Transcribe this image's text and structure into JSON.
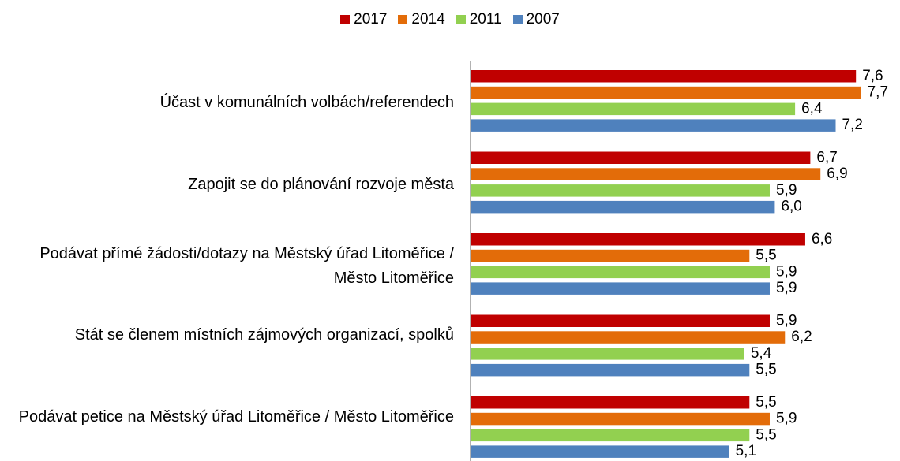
{
  "chart_data": {
    "type": "bar",
    "orientation": "horizontal",
    "categories": [
      "Účast v komunálních volbách/referendech",
      "Zapojit se do plánování rozvoje města",
      "Podávat přímé žádosti/dotazy na Městský úřad Litoměřice / Město Litoměřice",
      "Stát se členem místních zájmových organizací, spolků",
      "Podávat petice na Městský úřad Litoměřice / Město Litoměřice"
    ],
    "series": [
      {
        "name": "2017",
        "color": "#c00000",
        "values": [
          7.6,
          6.7,
          6.6,
          5.9,
          5.5
        ],
        "value_labels": [
          "7,6",
          "6,7",
          "6,6",
          "5,9",
          "5,5"
        ]
      },
      {
        "name": "2014",
        "color": "#e36c09",
        "values": [
          7.7,
          6.9,
          5.5,
          6.2,
          5.9
        ],
        "value_labels": [
          "7,7",
          "6,9",
          "5,5",
          "6,2",
          "5,9"
        ]
      },
      {
        "name": "2011",
        "color": "#92d050",
        "values": [
          6.4,
          5.9,
          5.9,
          5.4,
          5.5
        ],
        "value_labels": [
          "6,4",
          "5,9",
          "5,9",
          "5,4",
          "5,5"
        ]
      },
      {
        "name": "2007",
        "color": "#4f81bd",
        "values": [
          7.2,
          6.0,
          5.9,
          5.5,
          5.1
        ],
        "value_labels": [
          "7,2",
          "6,0",
          "5,9",
          "5,5",
          "5,1"
        ]
      }
    ],
    "xlim": [
      0,
      8.5
    ],
    "legend": "top"
  }
}
